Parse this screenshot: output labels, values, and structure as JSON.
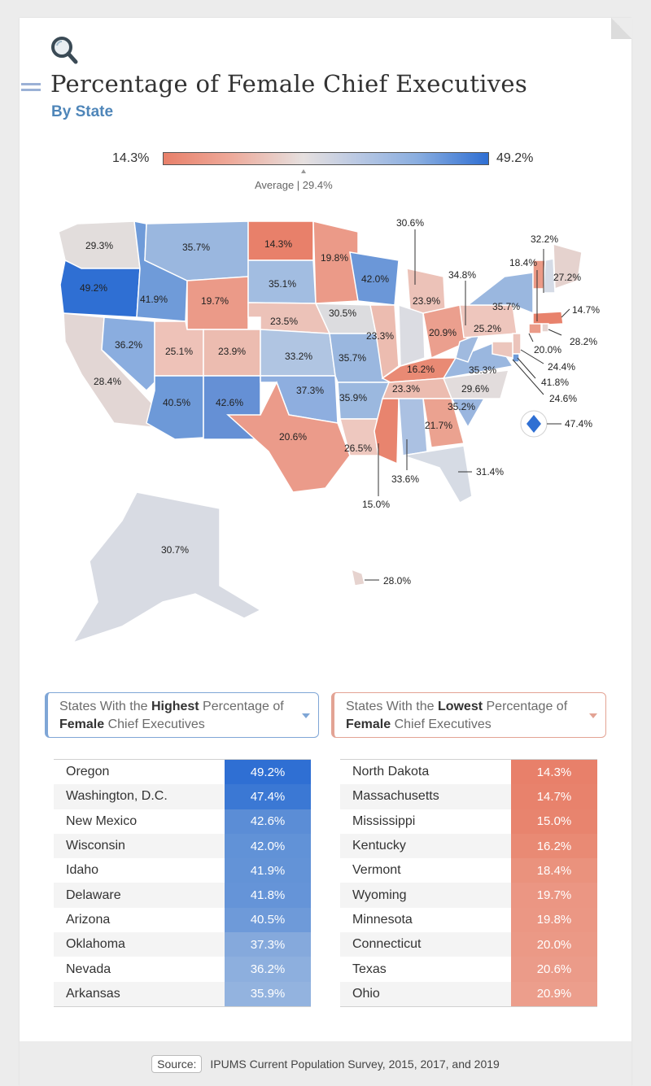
{
  "title": "Percentage of Female Chief Executives",
  "subtitle": "By State",
  "legend": {
    "min": "14.3%",
    "max": "49.2%",
    "average": "Average | 29.4%"
  },
  "colors": {
    "high": "#2f6fd3",
    "low": "#e8806a",
    "mid": "#e6e0df",
    "accent": "#4f86b9"
  },
  "icons": {
    "header": "magnifier-icon",
    "dropdown": "chevron-down-icon"
  },
  "map_labels": {
    "WA": "29.3%",
    "OR": "49.2%",
    "CA": "28.4%",
    "NV": "36.2%",
    "ID": "41.9%",
    "MT": "35.7%",
    "WY": "19.7%",
    "UT": "25.1%",
    "AZ": "40.5%",
    "CO": "23.9%",
    "NM": "42.6%",
    "ND": "14.3%",
    "SD": "35.1%",
    "NE": "23.5%",
    "KS": "33.2%",
    "OK": "37.3%",
    "TX": "20.6%",
    "MN": "19.8%",
    "IA": "30.5%",
    "MO": "35.7%",
    "AR": "35.9%",
    "LA": "26.5%",
    "WI": "42.0%",
    "IL": "23.3%",
    "MI": "23.9%",
    "IN": "30.6%",
    "OH": "20.9%",
    "KY": "16.2%",
    "TN": "23.3%",
    "MS": "15.0%",
    "AL": "33.6%",
    "GA": "21.7%",
    "FL": "31.4%",
    "SC": "35.2%",
    "NC": "29.6%",
    "VA": "35.3%",
    "WV": "34.8%",
    "PA": "25.2%",
    "NY": "35.7%",
    "VT": "18.4%",
    "NH": "32.2%",
    "ME": "27.2%",
    "MA": "14.7%",
    "RI": "28.2%",
    "CT": "20.0%",
    "NJ": "24.4%",
    "DE": "41.8%",
    "MD": "24.6%",
    "DC": "47.4%",
    "AK": "30.7%",
    "HI": "28.0%"
  },
  "highest": {
    "heading_pre": "States With the ",
    "heading_bold": "Highest",
    "heading_mid": " Percentage of ",
    "heading_bold2": "Female",
    "heading_post": " Chief Executives",
    "rows": [
      {
        "state": "Oregon",
        "value": "49.2%"
      },
      {
        "state": "Washington, D.C.",
        "value": "47.4%"
      },
      {
        "state": "New Mexico",
        "value": "42.6%"
      },
      {
        "state": "Wisconsin",
        "value": "42.0%"
      },
      {
        "state": "Idaho",
        "value": "41.9%"
      },
      {
        "state": "Delaware",
        "value": "41.8%"
      },
      {
        "state": "Arizona",
        "value": "40.5%"
      },
      {
        "state": "Oklahoma",
        "value": "37.3%"
      },
      {
        "state": "Nevada",
        "value": "36.2%"
      },
      {
        "state": "Arkansas",
        "value": "35.9%"
      }
    ]
  },
  "lowest": {
    "heading_pre": "States With the ",
    "heading_bold": "Lowest",
    "heading_mid": " Percentage of ",
    "heading_bold2": "Female",
    "heading_post": " Chief Executives",
    "rows": [
      {
        "state": "North Dakota",
        "value": "14.3%"
      },
      {
        "state": "Massachusetts",
        "value": "14.7%"
      },
      {
        "state": "Mississippi",
        "value": "15.0%"
      },
      {
        "state": "Kentucky",
        "value": "16.2%"
      },
      {
        "state": "Vermont",
        "value": "18.4%"
      },
      {
        "state": "Wyoming",
        "value": "19.7%"
      },
      {
        "state": "Minnesota",
        "value": "19.8%"
      },
      {
        "state": "Connecticut",
        "value": "20.0%"
      },
      {
        "state": "Texas",
        "value": "20.6%"
      },
      {
        "state": "Ohio",
        "value": "20.9%"
      }
    ]
  },
  "source": {
    "tag": "Source:",
    "text": "IPUMS Current Population Survey, 2015, 2017, and 2019"
  }
}
